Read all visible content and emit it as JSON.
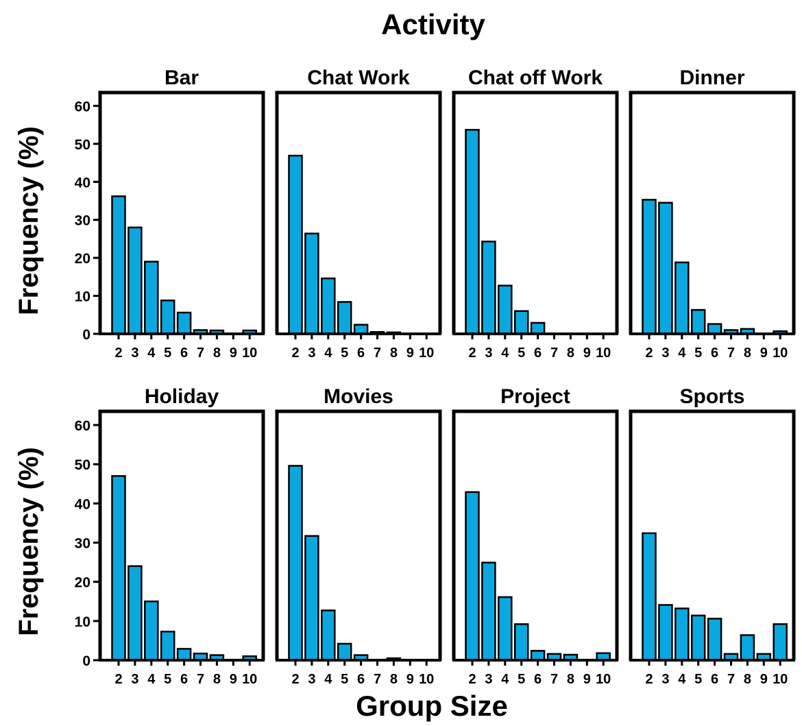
{
  "figure": {
    "title": "Activity",
    "xlabel": "Group Size",
    "ylabel": "Frequency (%)",
    "bar_color": "#0ba8df",
    "edge_color": "#000000"
  },
  "chart_data": [
    {
      "type": "bar",
      "title": "Bar",
      "categories": [
        "2",
        "3",
        "4",
        "5",
        "6",
        "7",
        "8",
        "9",
        "10"
      ],
      "values": [
        36.2,
        28.0,
        19.0,
        8.8,
        5.6,
        1.0,
        0.9,
        0.0,
        0.9
      ],
      "ylim": [
        0,
        60
      ],
      "yticks": [
        0,
        10,
        20,
        30,
        40,
        50,
        60
      ]
    },
    {
      "type": "bar",
      "title": "Chat Work",
      "categories": [
        "2",
        "3",
        "4",
        "5",
        "6",
        "7",
        "8",
        "9",
        "10"
      ],
      "values": [
        46.9,
        26.4,
        14.6,
        8.4,
        2.4,
        0.5,
        0.4,
        0.0,
        0.0
      ],
      "ylim": [
        0,
        60
      ],
      "yticks": [
        0,
        10,
        20,
        30,
        40,
        50,
        60
      ]
    },
    {
      "type": "bar",
      "title": "Chat off Work",
      "categories": [
        "2",
        "3",
        "4",
        "5",
        "6",
        "7",
        "8",
        "9",
        "10"
      ],
      "values": [
        53.7,
        24.3,
        12.7,
        6.0,
        2.9,
        0.0,
        0.0,
        0.0,
        0.0
      ],
      "ylim": [
        0,
        60
      ],
      "yticks": [
        0,
        10,
        20,
        30,
        40,
        50,
        60
      ]
    },
    {
      "type": "bar",
      "title": "Dinner",
      "categories": [
        "2",
        "3",
        "4",
        "5",
        "6",
        "7",
        "8",
        "9",
        "10"
      ],
      "values": [
        35.3,
        34.5,
        18.8,
        6.3,
        2.6,
        1.0,
        1.3,
        0.0,
        0.7
      ],
      "ylim": [
        0,
        60
      ],
      "yticks": [
        0,
        10,
        20,
        30,
        40,
        50,
        60
      ]
    },
    {
      "type": "bar",
      "title": "Holiday",
      "categories": [
        "2",
        "3",
        "4",
        "5",
        "6",
        "7",
        "8",
        "9",
        "10"
      ],
      "values": [
        47.0,
        24.0,
        15.0,
        7.3,
        2.9,
        1.7,
        1.3,
        0.0,
        1.0
      ],
      "ylim": [
        0,
        60
      ],
      "yticks": [
        0,
        10,
        20,
        30,
        40,
        50,
        60
      ]
    },
    {
      "type": "bar",
      "title": "Movies",
      "categories": [
        "2",
        "3",
        "4",
        "5",
        "6",
        "7",
        "8",
        "9",
        "10"
      ],
      "values": [
        49.6,
        31.7,
        12.7,
        4.2,
        1.3,
        0.0,
        0.5,
        0.0,
        0.0
      ],
      "ylim": [
        0,
        60
      ],
      "yticks": [
        0,
        10,
        20,
        30,
        40,
        50,
        60
      ]
    },
    {
      "type": "bar",
      "title": "Project",
      "categories": [
        "2",
        "3",
        "4",
        "5",
        "6",
        "7",
        "8",
        "9",
        "10"
      ],
      "values": [
        42.9,
        24.9,
        16.1,
        9.2,
        2.4,
        1.6,
        1.4,
        0.0,
        1.8
      ],
      "ylim": [
        0,
        60
      ],
      "yticks": [
        0,
        10,
        20,
        30,
        40,
        50,
        60
      ]
    },
    {
      "type": "bar",
      "title": "Sports",
      "categories": [
        "2",
        "3",
        "4",
        "5",
        "6",
        "7",
        "8",
        "9",
        "10"
      ],
      "values": [
        32.4,
        14.1,
        13.2,
        11.4,
        10.6,
        1.6,
        6.4,
        1.6,
        9.2
      ],
      "ylim": [
        0,
        60
      ],
      "yticks": [
        0,
        10,
        20,
        30,
        40,
        50,
        60
      ]
    }
  ]
}
